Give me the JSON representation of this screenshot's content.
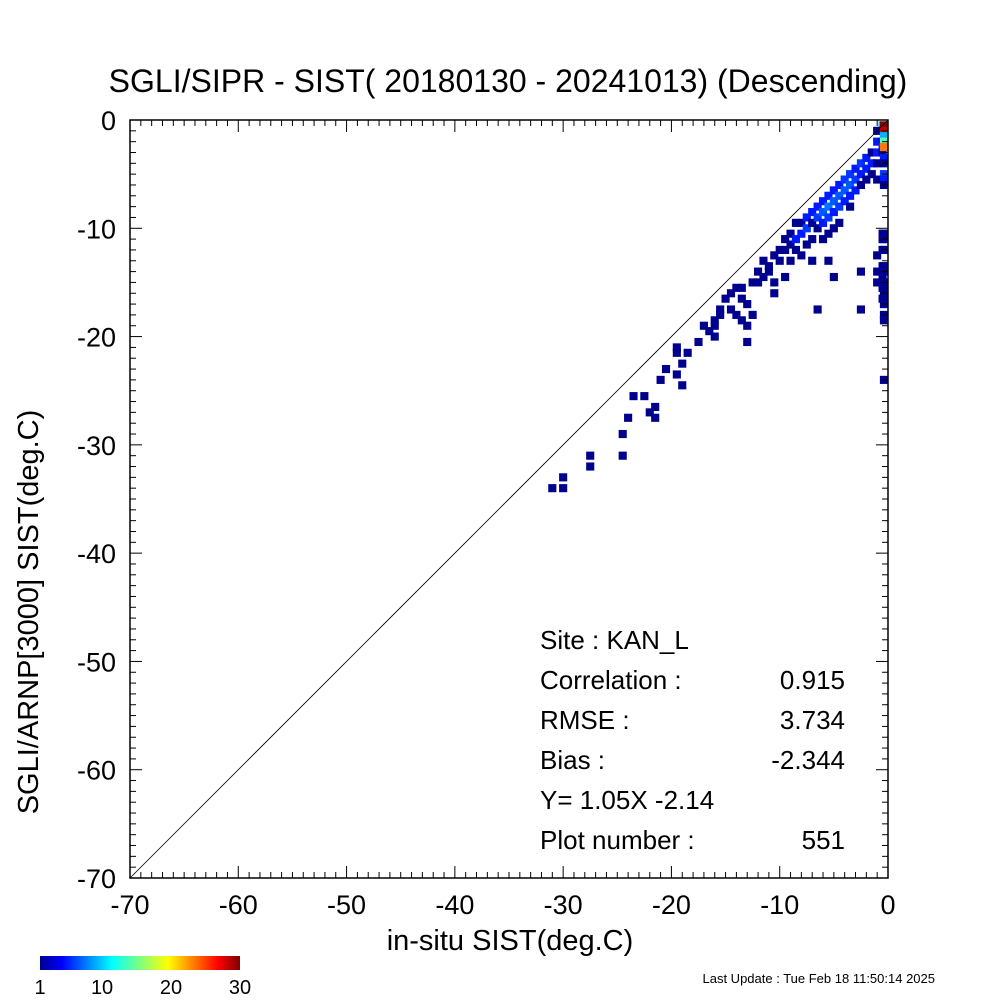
{
  "chart_data": {
    "type": "heatmap",
    "title": "SGLI/SIPR - SIST( 20180130 - 20241013) (Descending)",
    "xlabel": "in-situ SIST(deg.C)",
    "ylabel": "SGLI/ARNP[3000]     SIST(deg.C)",
    "xlim": [
      -70,
      0
    ],
    "ylim": [
      -70,
      0
    ],
    "x_ticks": [
      "-70",
      "-60",
      "-50",
      "-40",
      "-30",
      "-20",
      "-10",
      "0"
    ],
    "y_ticks": [
      "0",
      "-10",
      "-20",
      "-30",
      "-40",
      "-50",
      "-60",
      "-70"
    ],
    "reference_line": "1:1",
    "bin_size": 1,
    "colorbar": {
      "min": 1,
      "max": 30,
      "ticks": [
        "1",
        "10",
        "20",
        "30"
      ],
      "colormap": "jet"
    },
    "cells": [
      [
        -31,
        -34,
        1
      ],
      [
        -30,
        -34,
        1
      ],
      [
        -30,
        -33,
        1
      ],
      [
        -27.5,
        -31,
        1
      ],
      [
        -27.5,
        -32,
        1
      ],
      [
        -24.5,
        -31,
        1
      ],
      [
        -24.5,
        -29,
        1
      ],
      [
        -24,
        -27.5,
        1
      ],
      [
        -23.5,
        -25.5,
        1
      ],
      [
        -22.5,
        -25.5,
        1
      ],
      [
        -22,
        -27,
        1
      ],
      [
        -21.5,
        -26.5,
        1
      ],
      [
        -21.5,
        -27.5,
        1
      ],
      [
        -21,
        -24,
        1
      ],
      [
        -20.5,
        -23,
        1
      ],
      [
        -19.5,
        -23.5,
        1
      ],
      [
        -19,
        -24.5,
        1
      ],
      [
        -19,
        -22.5,
        1
      ],
      [
        -19.5,
        -21.5,
        1
      ],
      [
        -19.5,
        -21,
        1
      ],
      [
        -18.5,
        -21.5,
        1
      ],
      [
        -17.5,
        -20.5,
        1
      ],
      [
        -17,
        -19,
        1
      ],
      [
        -16.5,
        -19.5,
        1
      ],
      [
        -16,
        -18.5,
        1
      ],
      [
        -16,
        -19,
        1
      ],
      [
        -16,
        -20,
        1
      ],
      [
        -15.5,
        -18,
        1
      ],
      [
        -15.5,
        -17.5,
        1
      ],
      [
        -15,
        -16.5,
        1
      ],
      [
        -14.5,
        -16,
        1
      ],
      [
        -14.5,
        -17.5,
        1
      ],
      [
        -14,
        -15.5,
        1
      ],
      [
        -14,
        -18,
        1
      ],
      [
        -13.5,
        -15.5,
        1
      ],
      [
        -13.5,
        -16.5,
        1
      ],
      [
        -13.5,
        -18.5,
        1
      ],
      [
        -13,
        -17,
        1
      ],
      [
        -13,
        -19,
        1
      ],
      [
        -13,
        -20.5,
        1
      ],
      [
        -12.5,
        -15,
        1
      ],
      [
        -12.5,
        -18,
        1
      ],
      [
        -12,
        -14,
        1
      ],
      [
        -12,
        -15,
        1
      ],
      [
        -11.5,
        -13,
        1
      ],
      [
        -11.5,
        -14.5,
        1
      ],
      [
        -11,
        -13.5,
        1
      ],
      [
        -11,
        -14,
        1
      ],
      [
        -10.5,
        -12.5,
        1
      ],
      [
        -10.5,
        -15,
        1
      ],
      [
        -10.5,
        -16,
        1
      ],
      [
        -10,
        -12,
        1
      ],
      [
        -10,
        -13,
        1
      ],
      [
        -9.5,
        -11,
        1
      ],
      [
        -9.5,
        -12,
        1
      ],
      [
        -9.5,
        -14.5,
        1
      ],
      [
        -9,
        -10.5,
        1
      ],
      [
        -9,
        -11.5,
        1
      ],
      [
        -9,
        -13,
        1
      ],
      [
        -8.5,
        -9.5,
        1
      ],
      [
        -8.5,
        -11,
        2
      ],
      [
        -8.5,
        -12,
        1
      ],
      [
        -8,
        -9.5,
        1
      ],
      [
        -8,
        -10.5,
        2
      ],
      [
        -8,
        -12.5,
        1
      ],
      [
        -7.5,
        -9,
        2
      ],
      [
        -7.5,
        -10,
        3
      ],
      [
        -7.5,
        -11.5,
        1
      ],
      [
        -7,
        -8.5,
        2
      ],
      [
        -7,
        -9.5,
        1
      ],
      [
        -7,
        -11,
        1
      ],
      [
        -7,
        -13,
        1
      ],
      [
        -6.5,
        -8,
        2
      ],
      [
        -6.5,
        -9,
        3
      ],
      [
        -6.5,
        -10,
        1
      ],
      [
        -6,
        -7.5,
        2
      ],
      [
        -6,
        -8.5,
        4
      ],
      [
        -6,
        -9.5,
        2
      ],
      [
        -6,
        -11,
        1
      ],
      [
        -5.5,
        -7,
        2
      ],
      [
        -5.5,
        -8,
        5
      ],
      [
        -5.5,
        -9,
        3
      ],
      [
        -5.5,
        -10.5,
        1
      ],
      [
        -5,
        -6.5,
        2
      ],
      [
        -5,
        -7.5,
        4
      ],
      [
        -5,
        -8.5,
        2
      ],
      [
        -5,
        -10,
        1
      ],
      [
        -4.5,
        -6,
        2
      ],
      [
        -4.5,
        -7,
        4
      ],
      [
        -4.5,
        -8,
        3
      ],
      [
        -4.5,
        -9.5,
        1
      ],
      [
        -4,
        -5.5,
        3
      ],
      [
        -4,
        -6.5,
        4
      ],
      [
        -4,
        -7.5,
        2
      ],
      [
        -3.5,
        -5,
        3
      ],
      [
        -3.5,
        -6,
        4
      ],
      [
        -3.5,
        -7,
        2
      ],
      [
        -3.5,
        -8,
        1
      ],
      [
        -3,
        -4.5,
        2
      ],
      [
        -3,
        -5.5,
        3
      ],
      [
        -3,
        -6.5,
        2
      ],
      [
        -2.5,
        -4,
        3
      ],
      [
        -2.5,
        -5,
        2
      ],
      [
        -2.5,
        -6,
        1
      ],
      [
        -2,
        -3.5,
        2
      ],
      [
        -2,
        -4.5,
        2
      ],
      [
        -2,
        -5.5,
        1
      ],
      [
        -1.5,
        -3,
        1
      ],
      [
        -1.5,
        -4,
        2
      ],
      [
        -1.5,
        -5,
        1
      ],
      [
        -1,
        -2,
        2
      ],
      [
        -1,
        -3,
        2
      ],
      [
        -1,
        -4,
        1
      ],
      [
        -1,
        -5.5,
        1
      ],
      [
        -0.5,
        -0.5,
        8
      ],
      [
        -0.5,
        -1,
        3
      ],
      [
        -0.5,
        -2,
        1
      ],
      [
        -0.5,
        -2.5,
        2
      ],
      [
        -0.5,
        -3,
        1
      ],
      [
        -1,
        -1,
        1
      ],
      [
        0,
        -0.5,
        30
      ],
      [
        0,
        -1,
        28
      ],
      [
        0,
        -1.5,
        7
      ],
      [
        0,
        -2,
        12
      ],
      [
        0,
        -2.5,
        22
      ],
      [
        0,
        -3.5,
        2
      ],
      [
        0,
        -4,
        1
      ],
      [
        0,
        -5,
        3
      ],
      [
        0,
        -5.5,
        2
      ],
      [
        0,
        -6,
        1
      ],
      [
        0,
        -10.5,
        1
      ],
      [
        0,
        -11,
        1
      ],
      [
        0,
        -12,
        1
      ],
      [
        0,
        -13.5,
        1
      ],
      [
        0,
        -14,
        1
      ],
      [
        0,
        -15,
        1
      ],
      [
        0,
        -15.5,
        1
      ],
      [
        0,
        -16,
        1
      ],
      [
        0,
        -16.5,
        1
      ],
      [
        0,
        -17,
        1
      ],
      [
        0,
        -18,
        1
      ],
      [
        0,
        -18.5,
        1
      ],
      [
        0,
        -24,
        1
      ],
      [
        -0.5,
        -10.5,
        1
      ],
      [
        -0.5,
        -11,
        1
      ],
      [
        -0.5,
        -12,
        1
      ],
      [
        -0.5,
        -13.5,
        1
      ],
      [
        -0.5,
        -14.5,
        1
      ],
      [
        -0.5,
        -15.5,
        1
      ],
      [
        -0.5,
        -16.5,
        1
      ],
      [
        -1,
        -12.5,
        1
      ],
      [
        -1,
        -14,
        1
      ],
      [
        -1,
        -15,
        1
      ],
      [
        -5,
        -14.5,
        1
      ],
      [
        -6.5,
        -17.5,
        1
      ],
      [
        -2.5,
        -17.5,
        1
      ],
      [
        -2.5,
        -14,
        1
      ],
      [
        -5.5,
        -13,
        1
      ]
    ],
    "stats": [
      {
        "label": "Site : KAN_L",
        "value": ""
      },
      {
        "label": "Correlation :",
        "value": "0.915"
      },
      {
        "label": "RMSE :",
        "value": "3.734"
      },
      {
        "label": "Bias :",
        "value": "-2.344"
      },
      {
        "label": "Y=   1.05X  -2.14",
        "value": ""
      },
      {
        "label": "Plot number :",
        "value": "551"
      }
    ],
    "footer": "Last Update : Tue Feb 18 11:50:14 2025"
  }
}
